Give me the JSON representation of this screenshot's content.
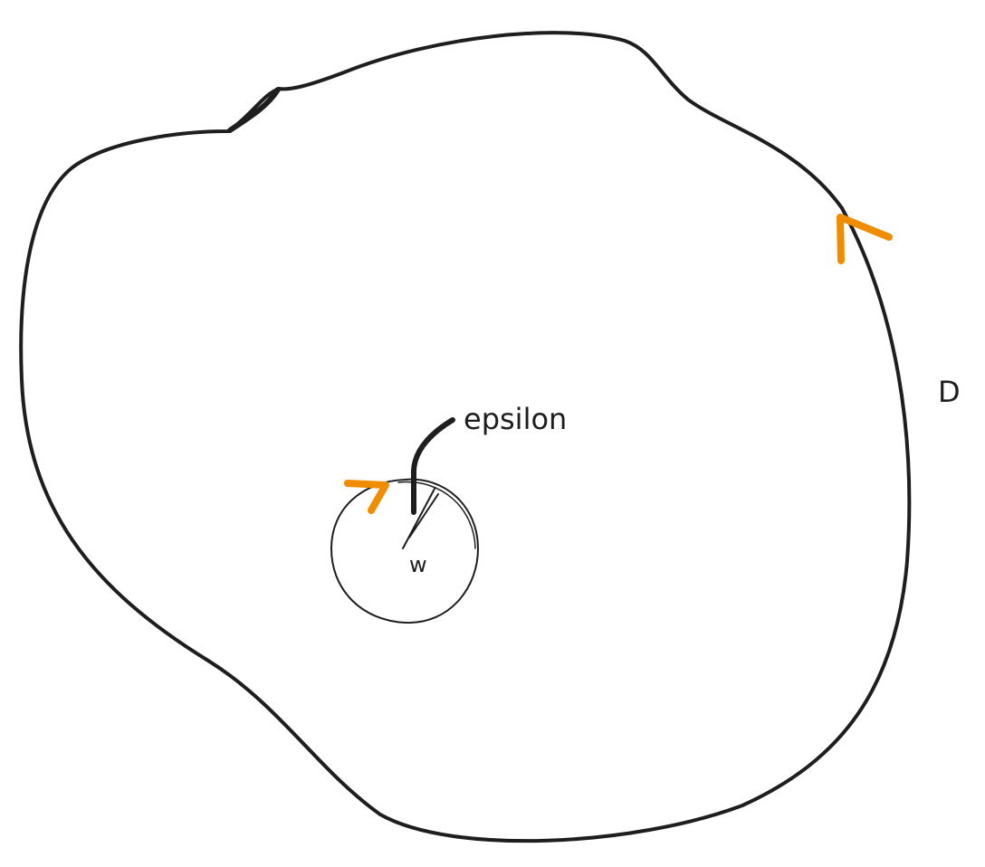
{
  "labels": {
    "region": "D",
    "radius": "epsilon",
    "center": "w"
  },
  "colors": {
    "stroke": "#1e1e1e",
    "arrow": "#f08c00",
    "background": "#ffffff"
  }
}
